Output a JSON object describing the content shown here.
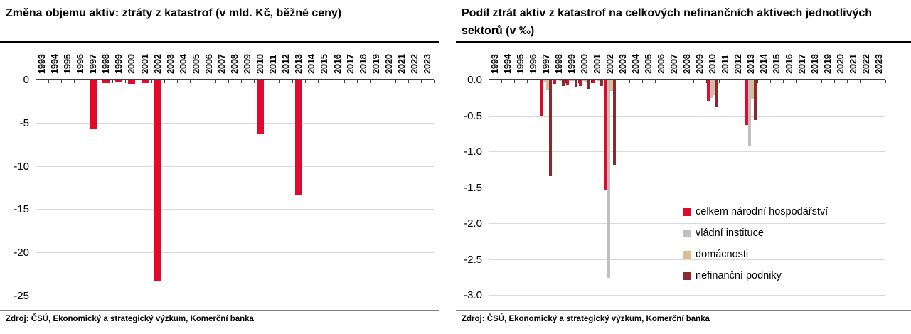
{
  "source_note": "Zdroj: ČSÚ, Ekonomický a strategický výzkum, Komerční banka",
  "palette": {
    "red": "#e20a2c",
    "gray": "#c1bebe",
    "tan": "#d9be8f",
    "darkred": "#8b2a2e",
    "gridline": "#d9d9d9",
    "axis": "#3d3d3d"
  },
  "chart_data": [
    {
      "type": "bar",
      "title": "Změna objemu aktiv: ztráty z katastrof (v mld. Kč, běžné ceny)",
      "source": "Zdroj: ČSÚ, Ekonomický a strategický výzkum, Komerční banka",
      "categories": [
        "1993",
        "1994",
        "1995",
        "1996",
        "1997",
        "1998",
        "1999",
        "2000",
        "2001",
        "2002",
        "2003",
        "2004",
        "2005",
        "2006",
        "2007",
        "2008",
        "2009",
        "2010",
        "2011",
        "2012",
        "2013",
        "2014",
        "2015",
        "2016",
        "2017",
        "2018",
        "2019",
        "2020",
        "2021",
        "2022",
        "2023"
      ],
      "values": [
        0,
        0,
        0,
        0,
        -5.7,
        -0.4,
        -0.3,
        -0.5,
        -0.4,
        -23.3,
        0,
        0,
        0,
        0,
        0,
        0,
        0,
        -6.3,
        0,
        0,
        -13.4,
        0,
        0,
        0,
        0,
        0,
        0,
        0,
        0,
        0,
        0
      ],
      "series_color": "#e20a2c",
      "ylim": [
        -25,
        0
      ],
      "ytick_values": [
        0,
        -5,
        -10,
        -15,
        -20,
        -25
      ],
      "ytick_labels": [
        "0",
        "-5",
        "-10",
        "-15",
        "-20",
        "-25"
      ],
      "grid": true,
      "legend": false
    },
    {
      "type": "bar",
      "title": "Podíl ztrát aktiv z katastrof na celkových nefinančních aktivech jednotlivých sektorů (v ‰)",
      "source": "Zdroj: ČSÚ, Ekonomický a strategický výzkum, Komerční banka",
      "categories": [
        "1993",
        "1994",
        "1995",
        "1996",
        "1997",
        "1998",
        "1999",
        "2000",
        "2001",
        "2002",
        "2003",
        "2004",
        "2005",
        "2006",
        "2007",
        "2008",
        "2009",
        "2010",
        "2011",
        "2012",
        "2013",
        "2014",
        "2015",
        "2016",
        "2017",
        "2018",
        "2019",
        "2020",
        "2021",
        "2022",
        "2023"
      ],
      "series": [
        {
          "name": "celkem národní hospodářství",
          "color": "#e20a2c",
          "values": [
            0,
            0,
            0,
            0,
            -0.5,
            -0.06,
            -0.08,
            -0.09,
            -0.05,
            -1.54,
            0,
            0,
            0,
            0,
            0,
            0,
            0,
            -0.3,
            0,
            0,
            -0.63,
            0,
            0,
            0,
            0,
            0,
            0,
            0,
            0,
            0,
            0
          ]
        },
        {
          "name": "vládní instituce",
          "color": "#c1bebe",
          "values": [
            0,
            0,
            0,
            0,
            -0.03,
            0,
            -0.02,
            -0.02,
            -0.01,
            -2.76,
            0,
            0,
            0,
            0,
            0,
            0,
            0,
            -0.26,
            0,
            0,
            -0.93,
            0,
            0,
            0,
            0,
            0,
            0,
            0,
            0,
            0,
            0
          ]
        },
        {
          "name": "domácnosti",
          "color": "#d9be8f",
          "values": [
            0,
            0,
            0,
            0,
            -0.15,
            -0.02,
            -0.02,
            -0.03,
            -0.02,
            -0.16,
            0,
            0,
            0,
            0,
            0,
            0,
            0,
            -0.22,
            0,
            0,
            -0.28,
            0,
            0,
            0,
            0,
            0,
            0,
            0,
            0,
            0,
            0
          ]
        },
        {
          "name": "nefinanční podniky",
          "color": "#8b2a2e",
          "values": [
            0,
            0,
            0,
            0,
            -1.35,
            -0.09,
            -0.11,
            -0.13,
            -0.09,
            -1.19,
            0,
            0,
            0,
            0,
            0,
            0,
            0,
            -0.39,
            0,
            0,
            -0.56,
            0,
            0,
            0,
            0,
            0,
            0,
            0,
            0,
            0,
            0
          ]
        }
      ],
      "ylim": [
        -3,
        0
      ],
      "ytick_values": [
        0,
        -0.5,
        -1,
        -1.5,
        -2,
        -2.5,
        -3
      ],
      "ytick_labels": [
        "0.0",
        "-0.5",
        "-1.0",
        "-1.5",
        "-2.0",
        "-2.5",
        "-3.0"
      ],
      "grid": true,
      "legend": true,
      "legend_position": "inside-right"
    }
  ]
}
